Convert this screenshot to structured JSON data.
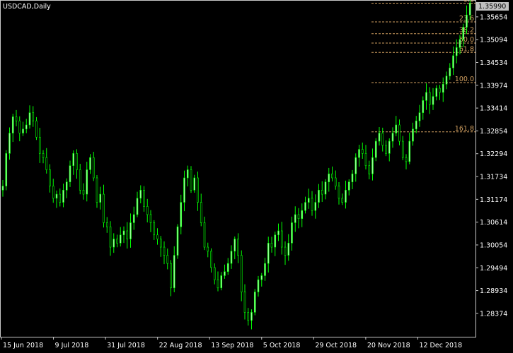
{
  "window": {
    "title": "USDCAD,Daily"
  },
  "colors": {
    "background": "#000000",
    "frame": "#c8c8c8",
    "candle": "#00ff00",
    "candle_body": "#9aff9a",
    "fibo": "#d2a060",
    "price_tag_bg": "#c0c0c0",
    "price_tag_text": "#000000"
  },
  "chart_data": {
    "type": "candlestick",
    "symbol": "USDCAD",
    "timeframe": "Daily",
    "x_tick_labels": [
      "15 Jun 2018",
      "9 Jul 2018",
      "31 Jul 2018",
      "22 Aug 2018",
      "13 Sep 2018",
      "5 Oct 2018",
      "29 Oct 2018",
      "20 Nov 2018",
      "12 Dec 2018"
    ],
    "y_tick_labels": [
      "1.35654",
      "1.35094",
      "1.34534",
      "1.33974",
      "1.33414",
      "1.32854",
      "1.32294",
      "1.31734",
      "1.31174",
      "1.30614",
      "1.30054",
      "1.29494",
      "1.28934",
      "1.28374"
    ],
    "ylim": [
      1.278,
      1.3605
    ],
    "current_price": "1.35990",
    "fibonacci_levels": [
      {
        "label": "0.0",
        "price": 1.3599
      },
      {
        "label": "23.6",
        "price": 1.3553
      },
      {
        "label": "38.2",
        "price": 1.3524
      },
      {
        "label": "50.0",
        "price": 1.3501
      },
      {
        "label": "61.8",
        "price": 1.3478
      },
      {
        "label": "100.0",
        "price": 1.3404
      },
      {
        "label": "161.8",
        "price": 1.3283
      }
    ],
    "closes": [
      1.315,
      1.323,
      1.328,
      1.332,
      1.331,
      1.328,
      1.329,
      1.33,
      1.333,
      1.331,
      1.327,
      1.323,
      1.322,
      1.319,
      1.315,
      1.312,
      1.313,
      1.311,
      1.314,
      1.316,
      1.32,
      1.323,
      1.319,
      1.314,
      1.313,
      1.319,
      1.322,
      1.317,
      1.311,
      1.313,
      1.306,
      1.305,
      1.3,
      1.302,
      1.301,
      1.303,
      1.304,
      1.302,
      1.306,
      1.308,
      1.312,
      1.314,
      1.31,
      1.308,
      1.306,
      1.303,
      1.302,
      1.3,
      1.298,
      1.296,
      1.29,
      1.298,
      1.305,
      1.311,
      1.317,
      1.319,
      1.314,
      1.317,
      1.311,
      1.306,
      1.3,
      1.299,
      1.295,
      1.292,
      1.29,
      1.293,
      1.294,
      1.296,
      1.299,
      1.302,
      1.298,
      1.289,
      1.284,
      1.282,
      1.284,
      1.289,
      1.292,
      1.293,
      1.296,
      1.301,
      1.3,
      1.303,
      1.304,
      1.3,
      1.298,
      1.301,
      1.306,
      1.308,
      1.307,
      1.309,
      1.311,
      1.312,
      1.309,
      1.311,
      1.314,
      1.313,
      1.316,
      1.318,
      1.317,
      1.315,
      1.312,
      1.311,
      1.314,
      1.316,
      1.318,
      1.322,
      1.324,
      1.323,
      1.32,
      1.318,
      1.322,
      1.326,
      1.328,
      1.325,
      1.323,
      1.326,
      1.328,
      1.33,
      1.326,
      1.322,
      1.321,
      1.326,
      1.329,
      1.331,
      1.333,
      1.336,
      1.338,
      1.335,
      1.337,
      1.339,
      1.338,
      1.34,
      1.342,
      1.344,
      1.347,
      1.349,
      1.351,
      1.354,
      1.357,
      1.3599
    ]
  }
}
